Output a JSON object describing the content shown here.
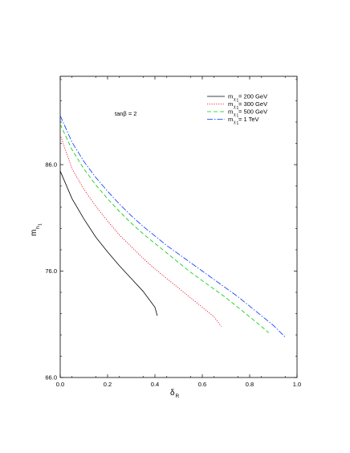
{
  "chart_data": {
    "type": "line",
    "annotation": "tanβ = 2",
    "xlabel": {
      "main": "δ",
      "sub": "R"
    },
    "ylabel": {
      "main": "m",
      "sub": "h",
      "subsub": "1"
    },
    "xlim": [
      0.0,
      1.0
    ],
    "ylim": [
      66.0,
      94.3
    ],
    "x_ticks": [
      0.0,
      0.2,
      0.4,
      0.6,
      0.8,
      1.0
    ],
    "x_tick_labels": [
      "0.0",
      "0.2",
      "0.4",
      "0.6",
      "0.8",
      "1.0"
    ],
    "y_ticks": [
      66.0,
      76.0,
      86.0
    ],
    "y_tick_labels": [
      "66.0",
      "76.0",
      "86.0"
    ],
    "grid": false,
    "legend_placement": "top-right",
    "series": [
      {
        "legend_pre": "m",
        "legend_sub": "χ",
        "legend_subsub": "1",
        "legend_post": " = 200 GeV",
        "color": "#000000",
        "dash": "",
        "x": [
          0.0,
          0.05,
          0.1,
          0.15,
          0.2,
          0.25,
          0.3,
          0.35,
          0.4,
          0.41
        ],
        "y": [
          85.4,
          82.8,
          80.9,
          79.2,
          77.8,
          76.5,
          75.3,
          74.1,
          72.6,
          71.8
        ]
      },
      {
        "legend_pre": "m",
        "legend_sub": "χ",
        "legend_subsub": "1",
        "legend_post": " = 300 GeV",
        "color": "#e0001b",
        "dash": "1.2,1.6",
        "x": [
          0.0,
          0.05,
          0.1,
          0.15,
          0.2,
          0.25,
          0.3,
          0.35,
          0.4,
          0.45,
          0.5,
          0.55,
          0.6,
          0.65,
          0.68
        ],
        "y": [
          88.8,
          85.6,
          83.7,
          82.1,
          80.7,
          79.4,
          78.3,
          77.2,
          76.2,
          75.3,
          74.4,
          73.5,
          72.6,
          71.7,
          70.8
        ]
      },
      {
        "legend_pre": "m",
        "legend_sub": "χ",
        "legend_subsub": "1",
        "legend_post": " = 500 GeV",
        "color": "#00cc00",
        "dash": "5,3",
        "x": [
          0.0,
          0.05,
          0.1,
          0.15,
          0.2,
          0.25,
          0.3,
          0.35,
          0.4,
          0.45,
          0.5,
          0.55,
          0.6,
          0.65,
          0.7,
          0.75,
          0.8,
          0.85,
          0.88
        ],
        "y": [
          89.8,
          87.4,
          85.6,
          84.1,
          82.8,
          81.6,
          80.5,
          79.5,
          78.6,
          77.7,
          76.8,
          75.9,
          75.1,
          74.3,
          73.5,
          72.6,
          71.7,
          70.8,
          70.2
        ]
      },
      {
        "legend_pre": "m",
        "legend_sub": "χ",
        "legend_subsub": "1",
        "legend_post": " = 1 TeV",
        "color": "#0033ff",
        "dash": "7,2,1.5,2",
        "x": [
          0.0,
          0.05,
          0.1,
          0.15,
          0.2,
          0.25,
          0.3,
          0.35,
          0.4,
          0.45,
          0.5,
          0.55,
          0.6,
          0.65,
          0.7,
          0.75,
          0.8,
          0.85,
          0.9,
          0.95
        ],
        "y": [
          90.6,
          88.1,
          86.3,
          84.8,
          83.5,
          82.3,
          81.2,
          80.2,
          79.3,
          78.4,
          77.6,
          76.8,
          76.0,
          75.2,
          74.4,
          73.6,
          72.7,
          71.8,
          70.9,
          69.8
        ]
      }
    ]
  }
}
